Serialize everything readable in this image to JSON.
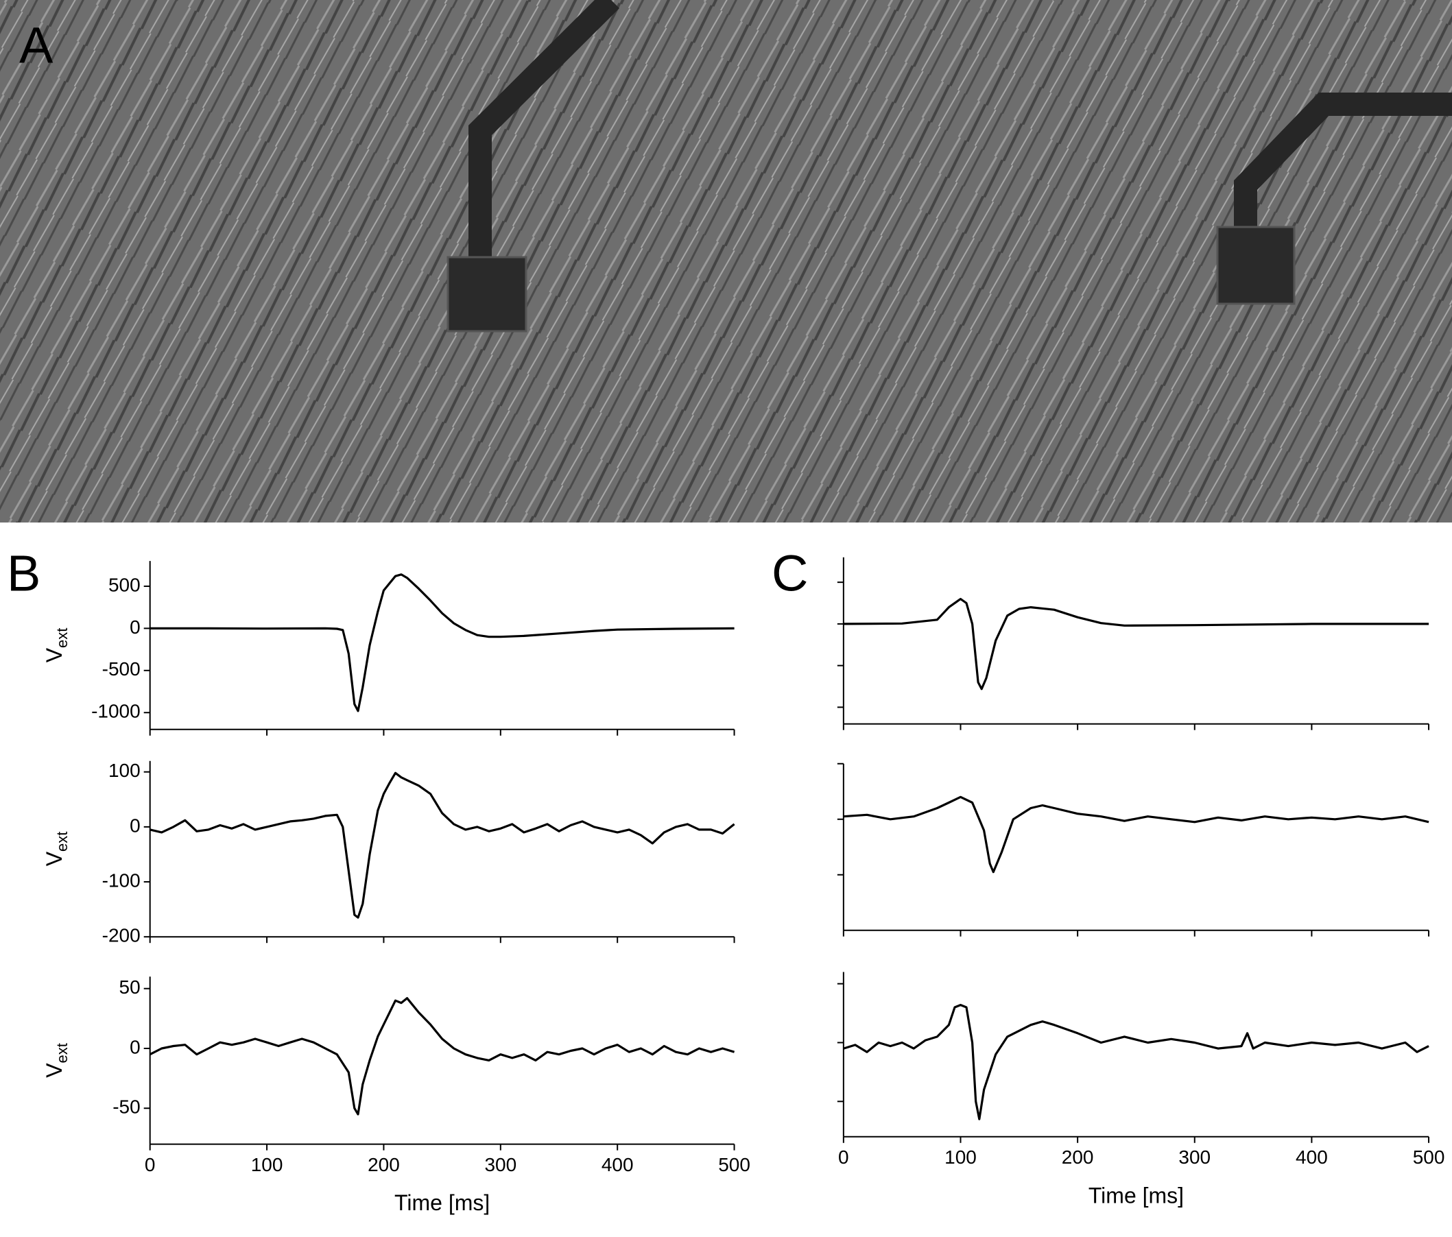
{
  "panel_labels": [
    "A",
    "B",
    "C"
  ],
  "chart_data": [
    {
      "type": "line",
      "ylabel": "V",
      "ylabel_subscript": "ext",
      "color": "#000000",
      "x": [
        0,
        50,
        100,
        150,
        160,
        165,
        170,
        175,
        178,
        182,
        188,
        195,
        200,
        210,
        215,
        220,
        230,
        240,
        250,
        260,
        270,
        280,
        290,
        300,
        320,
        350,
        380,
        400,
        450,
        500
      ],
      "values": [
        0,
        0,
        -3,
        0,
        -5,
        -20,
        -300,
        -900,
        -980,
        -700,
        -200,
        200,
        450,
        620,
        640,
        600,
        470,
        330,
        180,
        60,
        -20,
        -80,
        -100,
        -100,
        -90,
        -60,
        -30,
        -15,
        -5,
        0
      ],
      "xlim": [
        0,
        500
      ],
      "xticks": [
        0,
        100,
        200,
        300,
        400,
        500
      ],
      "xtick_labels": false,
      "ylim": [
        -1200,
        800
      ],
      "yticks": [
        500,
        0,
        -500,
        -1000
      ],
      "ytick_labels": true
    },
    {
      "type": "line",
      "ylabel": "V",
      "ylabel_subscript": "ext",
      "color": "#000000",
      "x": [
        0,
        10,
        20,
        30,
        40,
        50,
        60,
        70,
        80,
        90,
        100,
        110,
        120,
        130,
        140,
        150,
        160,
        165,
        170,
        175,
        178,
        182,
        188,
        195,
        200,
        205,
        210,
        215,
        220,
        230,
        240,
        250,
        260,
        270,
        280,
        290,
        300,
        310,
        320,
        330,
        340,
        350,
        360,
        370,
        380,
        390,
        400,
        410,
        420,
        430,
        440,
        450,
        460,
        470,
        480,
        490,
        500
      ],
      "values": [
        -5,
        -10,
        0,
        12,
        -8,
        -5,
        3,
        -3,
        5,
        -5,
        0,
        5,
        10,
        12,
        15,
        20,
        22,
        0,
        -80,
        -160,
        -165,
        -140,
        -50,
        30,
        60,
        80,
        98,
        90,
        85,
        75,
        60,
        25,
        5,
        -5,
        0,
        -8,
        -3,
        5,
        -10,
        -3,
        5,
        -8,
        3,
        10,
        0,
        -5,
        -10,
        -5,
        -15,
        -30,
        -10,
        0,
        5,
        -5,
        -5,
        -12,
        5
      ],
      "xlim": [
        0,
        500
      ],
      "xticks": [
        0,
        100,
        200,
        300,
        400,
        500
      ],
      "xtick_labels": false,
      "ylim": [
        -200,
        120
      ],
      "yticks": [
        100,
        0,
        -100,
        -200
      ],
      "ytick_labels": true
    },
    {
      "type": "line",
      "ylabel": "V",
      "ylabel_subscript": "ext",
      "xlabel": "Time [ms]",
      "color": "#000000",
      "x": [
        0,
        10,
        20,
        30,
        40,
        50,
        60,
        70,
        80,
        90,
        100,
        110,
        120,
        130,
        140,
        150,
        160,
        170,
        175,
        178,
        182,
        188,
        195,
        200,
        205,
        210,
        215,
        220,
        230,
        240,
        250,
        260,
        270,
        280,
        290,
        300,
        310,
        320,
        330,
        340,
        350,
        360,
        370,
        380,
        390,
        400,
        410,
        420,
        430,
        440,
        450,
        460,
        470,
        480,
        490,
        500
      ],
      "values": [
        -5,
        0,
        2,
        3,
        -5,
        0,
        5,
        3,
        5,
        8,
        5,
        2,
        5,
        8,
        5,
        0,
        -5,
        -20,
        -50,
        -55,
        -30,
        -10,
        10,
        20,
        30,
        40,
        38,
        42,
        30,
        20,
        8,
        0,
        -5,
        -8,
        -10,
        -5,
        -8,
        -5,
        -10,
        -3,
        -5,
        -2,
        0,
        -5,
        0,
        3,
        -3,
        0,
        -5,
        2,
        -3,
        -5,
        0,
        -3,
        0,
        -3
      ],
      "xlim": [
        0,
        500
      ],
      "xticks": [
        0,
        100,
        200,
        300,
        400,
        500
      ],
      "xtick_labels": true,
      "ylim": [
        -80,
        60
      ],
      "yticks": [
        50,
        0,
        -50
      ],
      "ytick_labels": true
    },
    {
      "type": "line",
      "color": "#000000",
      "x": [
        0,
        50,
        80,
        90,
        100,
        105,
        110,
        115,
        118,
        122,
        130,
        140,
        150,
        160,
        180,
        200,
        220,
        240,
        300,
        400,
        500
      ],
      "values": [
        0,
        5,
        50,
        200,
        300,
        250,
        0,
        -700,
        -780,
        -650,
        -200,
        100,
        180,
        200,
        170,
        80,
        10,
        -20,
        -15,
        0,
        0
      ],
      "xlim": [
        0,
        500
      ],
      "xticks": [
        0,
        100,
        200,
        300,
        400,
        500
      ],
      "xtick_labels": false,
      "ylim": [
        -1200,
        800
      ],
      "yticks": [
        500,
        0,
        -500,
        -1000
      ],
      "ytick_labels": false
    },
    {
      "type": "line",
      "color": "#000000",
      "x": [
        0,
        20,
        40,
        60,
        80,
        90,
        100,
        110,
        120,
        125,
        128,
        135,
        145,
        160,
        170,
        180,
        200,
        220,
        240,
        260,
        280,
        300,
        320,
        340,
        360,
        380,
        400,
        420,
        440,
        460,
        480,
        500
      ],
      "values": [
        5,
        8,
        0,
        5,
        20,
        30,
        40,
        30,
        -20,
        -80,
        -95,
        -60,
        0,
        20,
        25,
        20,
        10,
        5,
        -3,
        5,
        0,
        -5,
        3,
        -2,
        5,
        0,
        3,
        0,
        5,
        0,
        5,
        -5
      ],
      "xlim": [
        0,
        500
      ],
      "xticks": [
        0,
        100,
        200,
        300,
        400,
        500
      ],
      "xtick_labels": false,
      "ylim": [
        -200,
        100
      ],
      "yticks": [
        100,
        0,
        -100
      ],
      "ytick_labels": false
    },
    {
      "type": "line",
      "xlabel": "Time [ms]",
      "color": "#000000",
      "x": [
        0,
        10,
        20,
        30,
        40,
        50,
        60,
        70,
        80,
        90,
        95,
        100,
        105,
        110,
        113,
        116,
        120,
        130,
        140,
        150,
        160,
        170,
        180,
        200,
        220,
        240,
        260,
        280,
        300,
        320,
        340,
        345,
        350,
        360,
        380,
        400,
        420,
        440,
        460,
        480,
        490,
        500
      ],
      "values": [
        -5,
        -2,
        -8,
        0,
        -3,
        0,
        -5,
        2,
        5,
        15,
        30,
        32,
        30,
        0,
        -50,
        -65,
        -40,
        -10,
        5,
        10,
        15,
        18,
        15,
        8,
        0,
        5,
        0,
        3,
        0,
        -5,
        -3,
        8,
        -5,
        0,
        -3,
        0,
        -2,
        0,
        -5,
        0,
        -8,
        -3
      ],
      "xlim": [
        0,
        500
      ],
      "xticks": [
        0,
        100,
        200,
        300,
        400,
        500
      ],
      "xtick_labels": true,
      "ylim": [
        -80,
        60
      ],
      "yticks": [
        50,
        0,
        -50
      ],
      "ytick_labels": false
    }
  ]
}
